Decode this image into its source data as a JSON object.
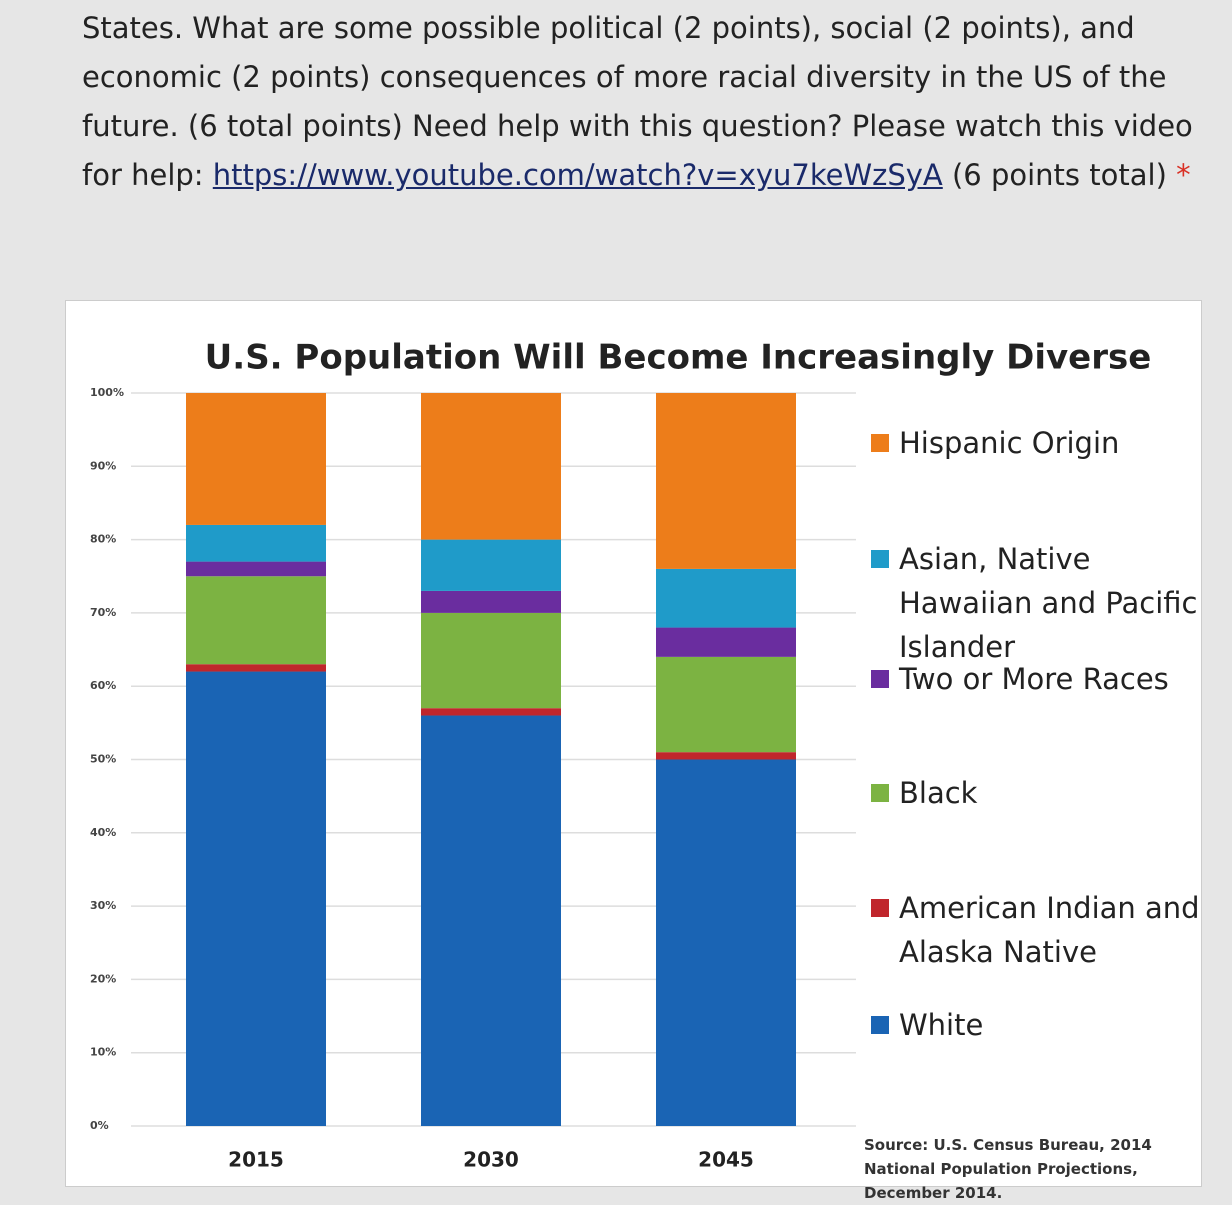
{
  "question": {
    "text": "States. What are some possible political (2 points), social (2 points), and economic (2 points) consequences of more racial diversity in the US of the future. (6 total points) Need help with this question? Please watch this video for help:",
    "link": "https://www.youtube.com/watch?v=xyu7keWzSyA",
    "suffix": "(6 points total)",
    "required": "*"
  },
  "chart_data": {
    "type": "stacked-bar",
    "title": "U.S. Population Will Become Increasingly Diverse",
    "categories": [
      "2015",
      "2030",
      "2045"
    ],
    "series": [
      {
        "name": "White",
        "color": "#1a64b4",
        "values": [
          62,
          56,
          50
        ]
      },
      {
        "name": "American Indian and Alaska Native",
        "color": "#c0262c",
        "values": [
          1,
          1,
          1
        ]
      },
      {
        "name": "Black",
        "color": "#7cb342",
        "values": [
          12,
          13,
          13
        ]
      },
      {
        "name": "Two or More Races",
        "color": "#6a2d9f",
        "values": [
          2,
          3,
          4
        ]
      },
      {
        "name": "Asian, Native Hawaiian and Pacific Islander",
        "color": "#1f9bc9",
        "values": [
          5,
          7,
          8
        ]
      },
      {
        "name": "Hispanic Origin",
        "color": "#ed7d1a",
        "values": [
          18,
          20,
          24
        ]
      }
    ],
    "ylim": [
      0,
      100
    ],
    "yticks": [
      {
        "value": 0,
        "label": "0%"
      },
      {
        "value": 10,
        "label": "10%"
      },
      {
        "value": 20,
        "label": "20%"
      },
      {
        "value": 30,
        "label": "30%"
      },
      {
        "value": 40,
        "label": "40%"
      },
      {
        "value": 50,
        "label": "50%"
      },
      {
        "value": 60,
        "label": "60%"
      },
      {
        "value": 70,
        "label": "70%"
      },
      {
        "value": 80,
        "label": "80%"
      },
      {
        "value": 90,
        "label": "90%"
      },
      {
        "value": 100,
        "label": "100%"
      }
    ],
    "grid": true,
    "source": "Source: U.S. Census Bureau, 2014 National Population Projections, December 2014."
  }
}
